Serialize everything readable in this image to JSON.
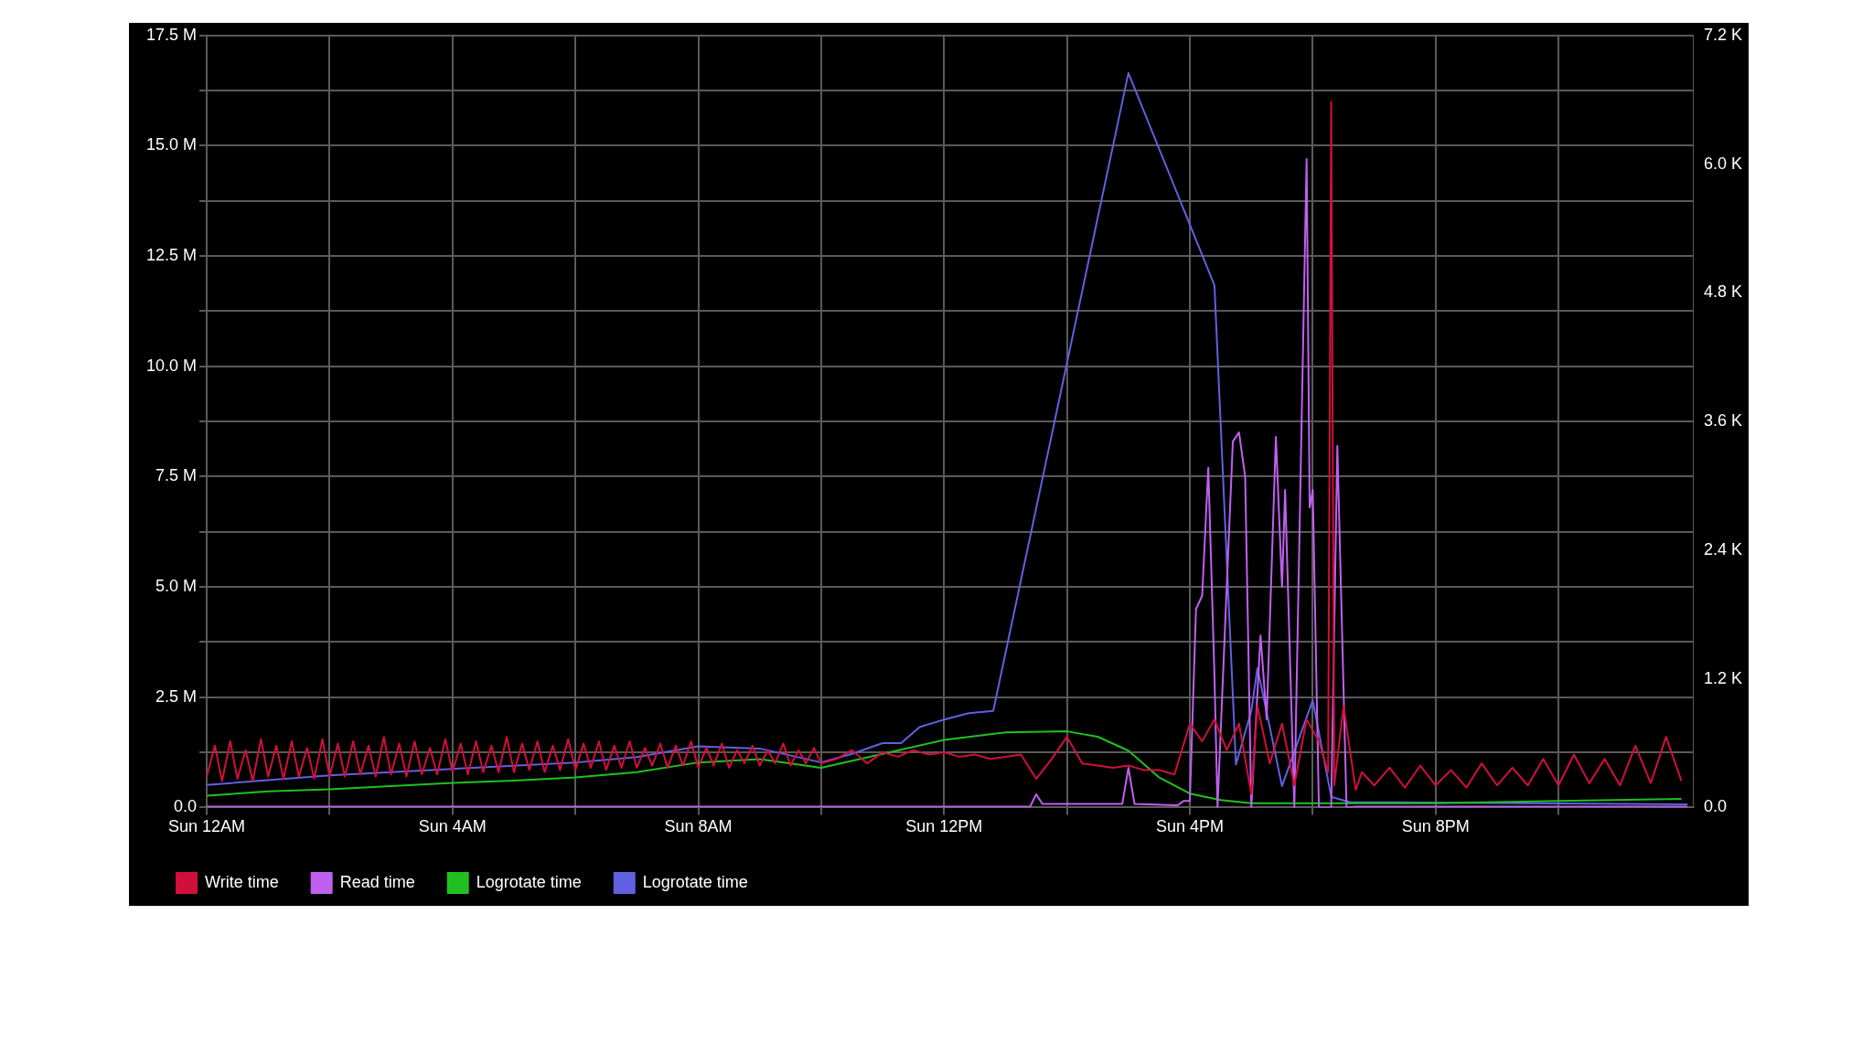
{
  "chart_data": {
    "type": "line",
    "xlim": [
      "--11-06T00:00",
      "--11-07T00:12"
    ],
    "xticks": [
      {
        "value": "--11-06T00:00",
        "label": "Sun 12AM"
      },
      {
        "value": "--11-06T02:00",
        "label": null
      },
      {
        "value": "--11-06T04:00",
        "label": "Sun 4AM"
      },
      {
        "value": "--11-06T06:00",
        "label": null
      },
      {
        "value": "--11-06T08:00",
        "label": "Sun 8AM"
      },
      {
        "value": "--11-06T10:00",
        "label": null
      },
      {
        "value": "--11-06T12:00",
        "label": "Sun 12PM"
      },
      {
        "value": "--11-06T14:00",
        "label": null
      },
      {
        "value": "--11-06T16:00",
        "label": "Sun 4PM"
      },
      {
        "value": "--11-06T18:00",
        "label": null
      },
      {
        "value": "--11-06T20:00",
        "label": "Sun 8PM"
      },
      {
        "value": "--11-06T22:00",
        "label": null
      }
    ],
    "ylim": [
      0,
      17.5
    ],
    "yticks": [
      {
        "value": 0,
        "label": "0.0"
      },
      {
        "value": 1.25,
        "label": null
      },
      {
        "value": 2.5,
        "label": "2.5 M"
      },
      {
        "value": 3.75,
        "label": null
      },
      {
        "value": 5,
        "label": "5.0 M"
      },
      {
        "value": 6.25,
        "label": null
      },
      {
        "value": 7.5,
        "label": "7.5 M"
      },
      {
        "value": 8.75,
        "label": null
      },
      {
        "value": 10,
        "label": "10.0 M"
      },
      {
        "value": 11.25,
        "label": null
      },
      {
        "value": 12.5,
        "label": "12.5 M"
      },
      {
        "value": 13.75,
        "label": null
      },
      {
        "value": 15,
        "label": "15.0 M"
      },
      {
        "value": 16.25,
        "label": null
      },
      {
        "value": 17.5,
        "label": "17.5 M"
      }
    ],
    "y2lim": [
      0,
      7.2
    ],
    "y2ticks": [
      {
        "value": 0,
        "label": "0.0"
      },
      {
        "value": 1.2,
        "label": "1.2 K"
      },
      {
        "value": 2.4,
        "label": "2.4 K"
      },
      {
        "value": 3.6,
        "label": "3.6 K"
      },
      {
        "value": 4.8,
        "label": "4.8 K"
      },
      {
        "value": 6,
        "label": "6.0 K"
      },
      {
        "value": 7.2,
        "label": "7.2 K"
      }
    ],
    "grid": true,
    "legend": "bottom",
    "marker": "none",
    "line_style": "solid",
    "series": [
      {
        "name": "Write time",
        "color": "#d0103a",
        "x": [
          "--11-06T00:00",
          "--11-06T00:08",
          "--11-06T00:15",
          "--11-06T00:23",
          "--11-06T00:30",
          "--11-06T00:38",
          "--11-06T00:45",
          "--11-06T00:53",
          "--11-06T01:00",
          "--11-06T01:08",
          "--11-06T01:15",
          "--11-06T01:23",
          "--11-06T01:30",
          "--11-06T01:38",
          "--11-06T01:45",
          "--11-06T01:53",
          "--11-06T02:00",
          "--11-06T02:08",
          "--11-06T02:15",
          "--11-06T02:23",
          "--11-06T02:30",
          "--11-06T02:38",
          "--11-06T02:45",
          "--11-06T02:53",
          "--11-06T03:00",
          "--11-06T03:08",
          "--11-06T03:15",
          "--11-06T03:23",
          "--11-06T03:30",
          "--11-06T03:38",
          "--11-06T03:45",
          "--11-06T03:53",
          "--11-06T04:00",
          "--11-06T04:08",
          "--11-06T04:15",
          "--11-06T04:23",
          "--11-06T04:30",
          "--11-06T04:38",
          "--11-06T04:45",
          "--11-06T04:53",
          "--11-06T05:00",
          "--11-06T05:08",
          "--11-06T05:15",
          "--11-06T05:23",
          "--11-06T05:30",
          "--11-06T05:38",
          "--11-06T05:45",
          "--11-06T05:53",
          "--11-06T06:00",
          "--11-06T06:08",
          "--11-06T06:15",
          "--11-06T06:23",
          "--11-06T06:30",
          "--11-06T06:38",
          "--11-06T06:45",
          "--11-06T06:53",
          "--11-06T07:00",
          "--11-06T07:08",
          "--11-06T07:15",
          "--11-06T07:23",
          "--11-06T07:30",
          "--11-06T07:38",
          "--11-06T07:45",
          "--11-06T07:53",
          "--11-06T08:00",
          "--11-06T08:08",
          "--11-06T08:15",
          "--11-06T08:23",
          "--11-06T08:30",
          "--11-06T08:38",
          "--11-06T08:45",
          "--11-06T08:53",
          "--11-06T09:00",
          "--11-06T09:08",
          "--11-06T09:15",
          "--11-06T09:23",
          "--11-06T09:30",
          "--11-06T09:38",
          "--11-06T09:45",
          "--11-06T09:53",
          "--11-06T10:00",
          "--11-06T10:15",
          "--11-06T10:30",
          "--11-06T10:45",
          "--11-06T11:00",
          "--11-06T11:15",
          "--11-06T11:30",
          "--11-06T11:45",
          "--11-06T12:00",
          "--11-06T12:15",
          "--11-06T12:30",
          "--11-06T12:45",
          "--11-06T13:00",
          "--11-06T13:15",
          "--11-06T13:30",
          "--11-06T13:45",
          "--11-06T14:00",
          "--11-06T14:15",
          "--11-06T14:30",
          "--11-06T14:45",
          "--11-06T15:00",
          "--11-06T15:15",
          "--11-06T15:30",
          "--11-06T15:45",
          "--11-06T16:00",
          "--11-06T16:12",
          "--11-06T16:24",
          "--11-06T16:36",
          "--11-06T16:48",
          "--11-06T17:00",
          "--11-06T17:06",
          "--11-06T17:18",
          "--11-06T17:30",
          "--11-06T17:42",
          "--11-06T17:54",
          "--11-06T18:06",
          "--11-06T18:15",
          "--11-06T18:18",
          "--11-06T18:21",
          "--11-06T18:30",
          "--11-06T18:42",
          "--11-06T18:48",
          "--11-06T19:00",
          "--11-06T19:15",
          "--11-06T19:30",
          "--11-06T19:45",
          "--11-06T20:00",
          "--11-06T20:15",
          "--11-06T20:30",
          "--11-06T20:45",
          "--11-06T21:00",
          "--11-06T21:15",
          "--11-06T21:30",
          "--11-06T21:45",
          "--11-06T22:00",
          "--11-06T22:15",
          "--11-06T22:30",
          "--11-06T22:45",
          "--11-06T23:00",
          "--11-06T23:15",
          "--11-06T23:30",
          "--11-06T23:45",
          "--11-07T00:00"
        ],
        "values": [
          0.7,
          1.4,
          0.6,
          1.5,
          0.65,
          1.3,
          0.6,
          1.55,
          0.7,
          1.4,
          0.65,
          1.5,
          0.7,
          1.35,
          0.65,
          1.55,
          0.7,
          1.45,
          0.7,
          1.5,
          0.75,
          1.4,
          0.7,
          1.6,
          0.75,
          1.45,
          0.7,
          1.5,
          0.75,
          1.35,
          0.75,
          1.55,
          0.8,
          1.45,
          0.75,
          1.5,
          0.8,
          1.4,
          0.8,
          1.6,
          0.8,
          1.45,
          0.85,
          1.5,
          0.8,
          1.4,
          0.85,
          1.55,
          0.85,
          1.45,
          0.9,
          1.5,
          0.85,
          1.4,
          0.9,
          1.5,
          0.9,
          1.35,
          0.95,
          1.45,
          0.9,
          1.4,
          0.95,
          1.5,
          0.9,
          1.35,
          0.95,
          1.45,
          0.9,
          1.3,
          1.0,
          1.4,
          0.95,
          1.3,
          1.0,
          1.45,
          0.95,
          1.3,
          1.0,
          1.35,
          1.0,
          1.1,
          1.3,
          1.0,
          1.25,
          1.15,
          1.3,
          1.2,
          1.25,
          1.15,
          1.2,
          1.1,
          1.15,
          1.2,
          0.65,
          1.1,
          1.6,
          1.0,
          0.95,
          0.9,
          0.95,
          0.85,
          0.85,
          0.75,
          1.9,
          1.5,
          2.0,
          1.3,
          1.9,
          0.3,
          2.3,
          1.0,
          1.9,
          0.5,
          2.0,
          1.5,
          0.8,
          16.0,
          0.5,
          2.3,
          0.4,
          0.8,
          0.5,
          0.9,
          0.45,
          0.95,
          0.5,
          0.85,
          0.45,
          1.0,
          0.5,
          0.9,
          0.5,
          1.1,
          0.5,
          1.2,
          0.55,
          1.1,
          0.5,
          1.4,
          0.55,
          1.6,
          0.6
        ]
      },
      {
        "name": "Read time",
        "color": "#c060f0",
        "x": [
          "--11-06T00:00",
          "--11-06T13:24",
          "--11-06T13:30",
          "--11-06T13:36",
          "--11-06T14:54",
          "--11-06T15:00",
          "--11-06T15:06",
          "--11-06T15:48",
          "--11-06T15:54",
          "--11-06T16:00",
          "--11-06T16:06",
          "--11-06T16:12",
          "--11-06T16:18",
          "--11-06T16:24",
          "--11-06T16:27",
          "--11-06T16:36",
          "--11-06T16:42",
          "--11-06T16:48",
          "--11-06T16:54",
          "--11-06T17:00",
          "--11-06T17:09",
          "--11-06T17:15",
          "--11-06T17:24",
          "--11-06T17:30",
          "--11-06T17:33",
          "--11-06T17:42",
          "--11-06T17:54",
          "--11-06T17:57",
          "--11-06T18:00",
          "--11-06T18:06",
          "--11-06T18:18",
          "--11-06T18:24",
          "--11-06T18:33",
          "--11-06T18:42",
          "--11-07T00:06"
        ],
        "values": [
          0.02,
          0.02,
          0.3,
          0.08,
          0.08,
          0.9,
          0.08,
          0.05,
          0.15,
          0.15,
          4.5,
          4.8,
          7.7,
          3.0,
          0,
          5.0,
          8.3,
          8.5,
          7.5,
          0,
          3.9,
          2.0,
          8.4,
          5.0,
          7.2,
          0,
          14.7,
          6.8,
          7.2,
          0,
          0,
          8.2,
          0,
          0.02,
          0.02
        ]
      },
      {
        "name": "Logrotate time",
        "color": "#20c020",
        "axis": "y2",
        "x": [
          "--11-06T00:00",
          "--11-06T01:00",
          "--11-06T02:00",
          "--11-06T03:00",
          "--11-06T04:00",
          "--11-06T05:00",
          "--11-06T06:00",
          "--11-06T07:00",
          "--11-06T08:00",
          "--11-06T09:00",
          "--11-06T10:00",
          "--11-06T11:00",
          "--11-06T12:00",
          "--11-06T13:00",
          "--11-06T14:00",
          "--11-06T14:30",
          "--11-06T15:00",
          "--11-06T15:30",
          "--11-06T16:00",
          "--11-06T16:30",
          "--11-06T17:00",
          "--11-06T20:00",
          "--11-06T22:00",
          "--11-07T00:00"
        ],
        "values": [
          0.11,
          0.15,
          0.17,
          0.2,
          0.23,
          0.25,
          0.28,
          0.33,
          0.42,
          0.45,
          0.37,
          0.5,
          0.63,
          0.7,
          0.71,
          0.66,
          0.53,
          0.28,
          0.13,
          0.07,
          0.04,
          0.04,
          0.06,
          0.08
        ]
      },
      {
        "name": "Logrotate time",
        "color": "#6060e0",
        "axis": "y2",
        "x": [
          "--11-06T00:00",
          "--11-06T02:00",
          "--11-06T04:00",
          "--11-06T06:00",
          "--11-06T07:00",
          "--11-06T08:00",
          "--11-06T09:00",
          "--11-06T10:00",
          "--11-06T10:30",
          "--11-06T11:00",
          "--11-06T11:18",
          "--11-06T11:36",
          "--11-06T12:00",
          "--11-06T12:24",
          "--11-06T12:48",
          "--11-06T15:00",
          "--11-06T16:24",
          "--11-06T16:45",
          "--11-06T17:00",
          "--11-06T17:06",
          "--11-06T17:30",
          "--11-06T18:00",
          "--11-06T18:18",
          "--11-06T18:36",
          "--11-07T00:06"
        ],
        "values": [
          0.21,
          0.3,
          0.36,
          0.42,
          0.47,
          0.57,
          0.55,
          0.42,
          0.5,
          0.6,
          0.6,
          0.75,
          0.82,
          0.88,
          0.9,
          6.85,
          4.87,
          0.4,
          0.9,
          1.3,
          0.2,
          1.0,
          0.1,
          0.05,
          0.03
        ]
      }
    ]
  }
}
